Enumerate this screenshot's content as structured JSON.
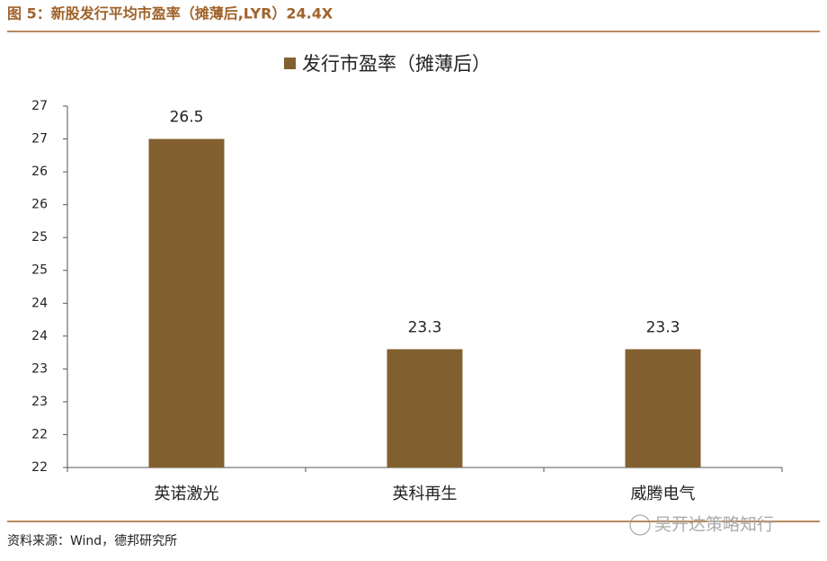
{
  "chart_data": {
    "type": "bar",
    "title": "图 5：新股发行平均市盈率（摊薄后,LYR）24.4X",
    "categories": [
      "英诺激光",
      "英科再生",
      "威腾电气"
    ],
    "series": [
      {
        "name": "发行市盈率（摊薄后）",
        "color": "#83602f",
        "values": [
          26.5,
          23.3,
          23.3
        ]
      }
    ],
    "ylim": [
      21.5,
      27
    ],
    "yticks": [
      {
        "value": 21.5,
        "label": "22"
      },
      22,
      {
        "value": 22.5,
        "label": "23"
      },
      23,
      {
        "value": 23.5,
        "label": "24"
      },
      24,
      {
        "value": 24.5,
        "label": "25"
      },
      25,
      {
        "value": 25.5,
        "label": "26"
      },
      26,
      {
        "value": 26.5,
        "label": "27"
      },
      27
    ],
    "legend": "top",
    "source": "资料来源：Wind，德邦研究所",
    "watermark": "吴开达策略知行"
  }
}
